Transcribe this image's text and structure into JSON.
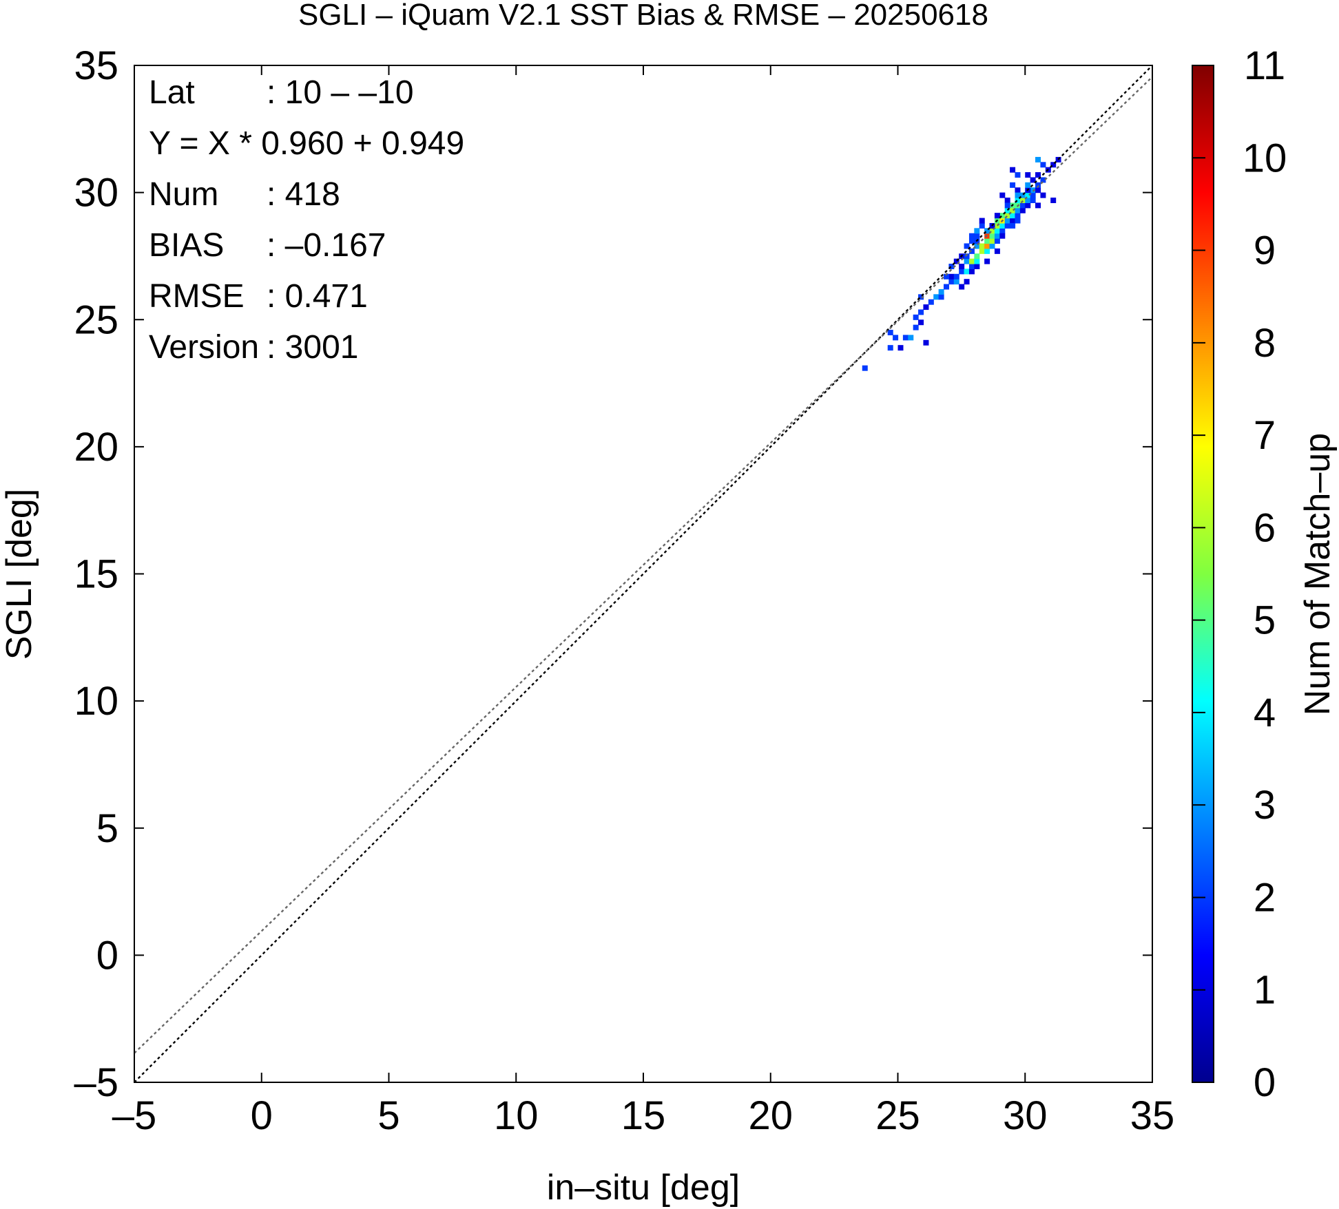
{
  "chart_data": {
    "type": "heatmap",
    "title": "SGLI – iQuam V2.1 SST Bias & RMSE  – 20250618",
    "xlabel": "in–situ [deg]",
    "ylabel": "SGLI [deg]",
    "colorbar_label": "Num of Match–up",
    "xlim": [
      -5,
      35
    ],
    "ylim": [
      -5,
      35
    ],
    "x_ticks": [
      "–5",
      "0",
      "5",
      "10",
      "15",
      "20",
      "25",
      "30",
      "35"
    ],
    "y_ticks": [
      "–5",
      "0",
      "5",
      "10",
      "15",
      "20",
      "25",
      "30",
      "35"
    ],
    "x_tick_values": [
      -5,
      0,
      5,
      10,
      15,
      20,
      25,
      30,
      35
    ],
    "y_tick_values": [
      -5,
      0,
      5,
      10,
      15,
      20,
      25,
      30,
      35
    ],
    "colorbar_range": [
      0,
      11
    ],
    "colorbar_ticks": [
      "0",
      "1",
      "2",
      "3",
      "4",
      "5",
      "6",
      "7",
      "8",
      "9",
      "10",
      "11"
    ],
    "colorbar_tick_values": [
      0,
      1,
      2,
      3,
      4,
      5,
      6,
      7,
      8,
      9,
      10,
      11
    ],
    "grid": false,
    "stats": [
      {
        "label": "Lat",
        "value": ": 10 – –10"
      },
      {
        "label": "Y = X * 0.960 + 0.949",
        "value": ""
      },
      {
        "label": "Num",
        "value": ": 418"
      },
      {
        "label": "BIAS",
        "value": ": –0.167"
      },
      {
        "label": "RMSE",
        "value": ": 0.471"
      },
      {
        "label": "Version",
        "value": ": 3001"
      }
    ],
    "lines": [
      {
        "type": "identity",
        "slope": 1.0,
        "intercept": 0.0,
        "color": "#000000",
        "style": "dotted"
      },
      {
        "type": "regression",
        "slope": 0.96,
        "intercept": 0.949,
        "color": "#666666",
        "style": "dotted"
      }
    ],
    "bin_size": 0.2,
    "cells": [
      [
        23.6,
        23.0,
        2
      ],
      [
        24.6,
        23.8,
        2
      ],
      [
        25.0,
        23.8,
        1
      ],
      [
        26.0,
        24.0,
        1
      ],
      [
        24.8,
        24.2,
        2
      ],
      [
        25.2,
        24.2,
        2
      ],
      [
        25.4,
        24.2,
        3
      ],
      [
        24.6,
        24.4,
        2
      ],
      [
        25.6,
        24.6,
        2
      ],
      [
        25.8,
        24.8,
        1
      ],
      [
        25.6,
        25.0,
        2
      ],
      [
        25.8,
        25.2,
        2
      ],
      [
        26.0,
        25.4,
        1
      ],
      [
        26.2,
        25.6,
        2
      ],
      [
        26.4,
        25.8,
        3
      ],
      [
        25.8,
        25.8,
        2
      ],
      [
        26.6,
        25.8,
        2
      ],
      [
        26.6,
        26.0,
        3
      ],
      [
        26.8,
        26.2,
        2
      ],
      [
        27.0,
        26.4,
        2
      ],
      [
        27.2,
        26.4,
        3
      ],
      [
        27.0,
        26.6,
        1
      ],
      [
        27.2,
        26.6,
        2
      ],
      [
        26.8,
        26.6,
        2
      ],
      [
        27.4,
        26.8,
        2
      ],
      [
        27.6,
        26.8,
        4
      ],
      [
        27.8,
        26.8,
        1
      ],
      [
        27.4,
        27.0,
        1
      ],
      [
        27.8,
        27.0,
        2
      ],
      [
        28.0,
        27.0,
        1
      ],
      [
        27.6,
        27.2,
        3
      ],
      [
        27.8,
        27.2,
        6
      ],
      [
        28.0,
        27.2,
        4
      ],
      [
        27.4,
        27.4,
        1
      ],
      [
        27.6,
        27.4,
        2
      ],
      [
        28.0,
        27.4,
        5
      ],
      [
        28.2,
        27.6,
        6
      ],
      [
        28.4,
        27.6,
        4
      ],
      [
        27.8,
        27.6,
        2
      ],
      [
        28.0,
        27.8,
        3
      ],
      [
        28.2,
        27.8,
        6
      ],
      [
        28.4,
        27.8,
        8
      ],
      [
        28.6,
        27.8,
        3
      ],
      [
        27.8,
        28.0,
        2
      ],
      [
        28.0,
        28.0,
        2
      ],
      [
        28.4,
        28.0,
        5
      ],
      [
        28.6,
        28.0,
        6
      ],
      [
        28.8,
        28.0,
        2
      ],
      [
        28.0,
        28.2,
        2
      ],
      [
        28.4,
        28.2,
        9
      ],
      [
        28.6,
        28.2,
        5
      ],
      [
        28.8,
        28.2,
        3
      ],
      [
        28.6,
        28.4,
        6
      ],
      [
        28.8,
        28.4,
        4
      ],
      [
        29.0,
        28.4,
        2
      ],
      [
        28.4,
        28.4,
        3
      ],
      [
        28.8,
        28.6,
        6
      ],
      [
        29.0,
        28.6,
        4
      ],
      [
        29.2,
        28.6,
        2
      ],
      [
        28.6,
        28.6,
        1
      ],
      [
        28.8,
        28.8,
        5
      ],
      [
        29.0,
        28.8,
        7
      ],
      [
        29.2,
        28.8,
        3
      ],
      [
        29.4,
        28.8,
        1
      ],
      [
        29.0,
        29.0,
        5
      ],
      [
        29.2,
        29.0,
        6
      ],
      [
        29.4,
        29.0,
        4
      ],
      [
        29.6,
        29.0,
        2
      ],
      [
        29.2,
        29.2,
        4
      ],
      [
        29.4,
        29.2,
        6
      ],
      [
        29.6,
        29.2,
        3
      ],
      [
        29.8,
        29.2,
        1
      ],
      [
        29.4,
        29.4,
        5
      ],
      [
        29.6,
        29.4,
        5
      ],
      [
        29.8,
        29.4,
        2
      ],
      [
        30.0,
        29.4,
        1
      ],
      [
        29.6,
        29.6,
        4
      ],
      [
        29.8,
        29.6,
        6
      ],
      [
        30.0,
        29.6,
        3
      ],
      [
        29.2,
        29.6,
        1
      ],
      [
        29.8,
        29.8,
        3
      ],
      [
        30.0,
        29.8,
        4
      ],
      [
        30.2,
        29.8,
        2
      ],
      [
        30.2,
        30.0,
        3
      ],
      [
        30.0,
        30.0,
        1
      ],
      [
        30.4,
        30.0,
        1
      ],
      [
        29.6,
        30.0,
        1
      ],
      [
        30.4,
        30.2,
        2
      ],
      [
        30.2,
        30.4,
        1
      ],
      [
        30.6,
        30.4,
        2
      ],
      [
        30.0,
        30.6,
        1
      ],
      [
        30.4,
        30.6,
        1
      ],
      [
        30.8,
        30.8,
        1
      ],
      [
        31.0,
        31.0,
        1
      ],
      [
        30.6,
        31.0,
        2
      ],
      [
        31.2,
        31.2,
        1
      ],
      [
        30.4,
        31.2,
        3
      ],
      [
        29.4,
        30.8,
        1
      ],
      [
        29.6,
        30.6,
        2
      ],
      [
        30.0,
        30.2,
        3
      ],
      [
        30.2,
        29.6,
        2
      ],
      [
        30.4,
        29.4,
        1
      ],
      [
        30.6,
        29.8,
        1
      ],
      [
        31.0,
        29.6,
        1
      ],
      [
        29.0,
        28.2,
        1
      ],
      [
        29.4,
        28.6,
        2
      ],
      [
        29.6,
        28.8,
        2
      ],
      [
        28.8,
        27.6,
        1
      ],
      [
        28.4,
        27.2,
        1
      ],
      [
        27.6,
        26.4,
        1
      ],
      [
        27.4,
        26.2,
        1
      ],
      [
        29.2,
        29.4,
        2
      ],
      [
        28.8,
        29.0,
        1
      ],
      [
        28.2,
        28.6,
        2
      ],
      [
        28.0,
        28.4,
        3
      ],
      [
        27.8,
        28.2,
        2
      ],
      [
        28.2,
        28.8,
        1
      ],
      [
        27.6,
        27.8,
        2
      ],
      [
        27.2,
        27.2,
        1
      ],
      [
        27.0,
        27.0,
        2
      ],
      [
        29.0,
        29.8,
        1
      ],
      [
        29.4,
        30.2,
        2
      ],
      [
        29.6,
        29.8,
        3
      ]
    ]
  }
}
